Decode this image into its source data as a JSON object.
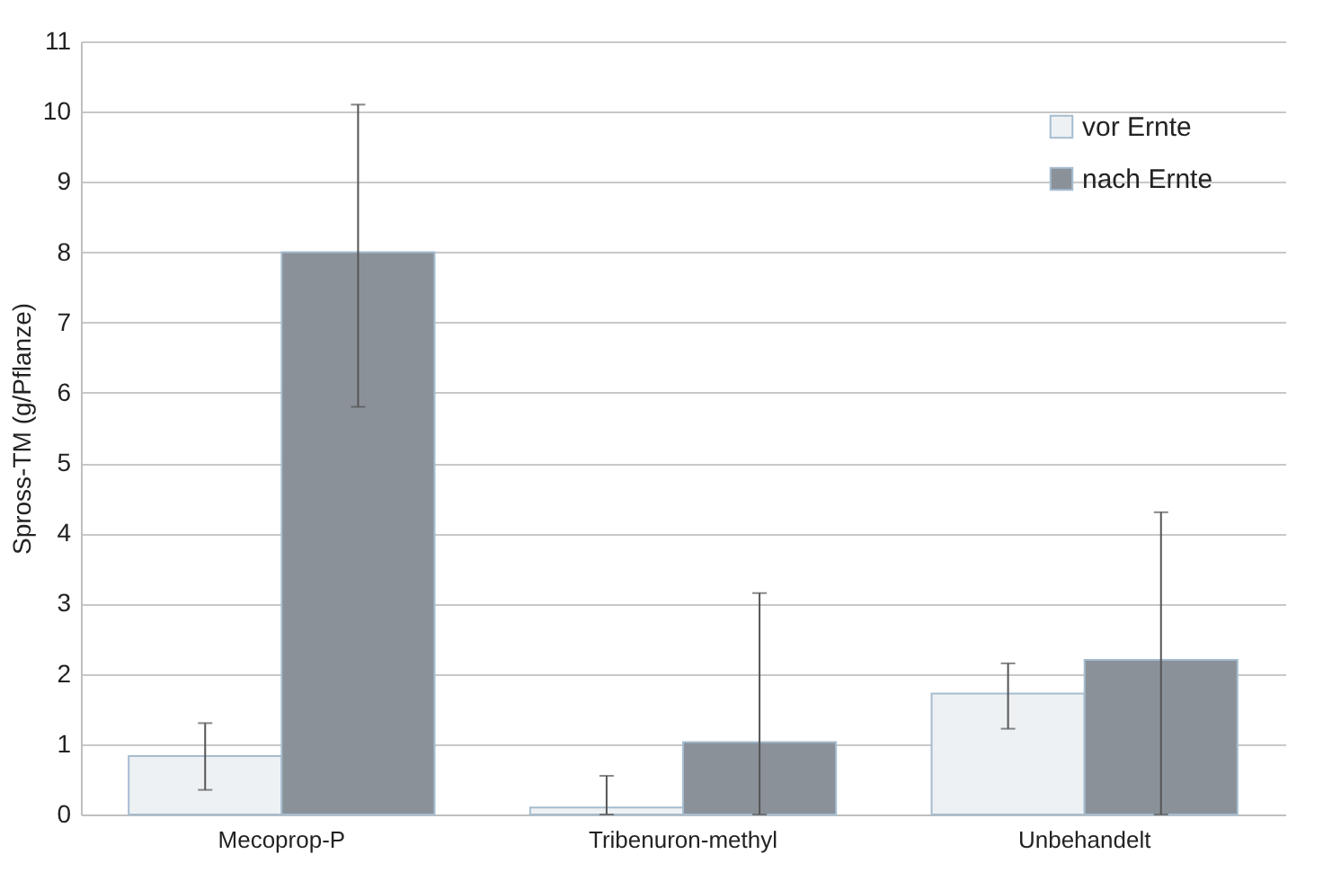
{
  "chart_data": {
    "type": "bar",
    "ylabel": "Spross-TM (g/Pflanze)",
    "categories": [
      "Mecoprop-P",
      "Tribenuron-methyl",
      "Unbehandelt"
    ],
    "series": [
      {
        "name": "vor Ernte",
        "color": "#eef1f3",
        "values": [
          0.83,
          0.1,
          1.72
        ],
        "errors": [
          [
            0.35,
            1.3
          ],
          [
            0,
            0.55
          ],
          [
            1.22,
            2.15
          ]
        ]
      },
      {
        "name": "nach Ernte",
        "color": "#8a9199",
        "values": [
          8.0,
          1.03,
          2.2
        ],
        "errors": [
          [
            5.8,
            10.1
          ],
          [
            0,
            3.15
          ],
          [
            0,
            4.3
          ]
        ]
      }
    ],
    "ylim": [
      0,
      11
    ],
    "yticks": [
      0,
      1,
      2,
      3,
      4,
      5,
      6,
      7,
      8,
      9,
      10,
      11
    ],
    "grid": "y",
    "legend": "top right"
  }
}
